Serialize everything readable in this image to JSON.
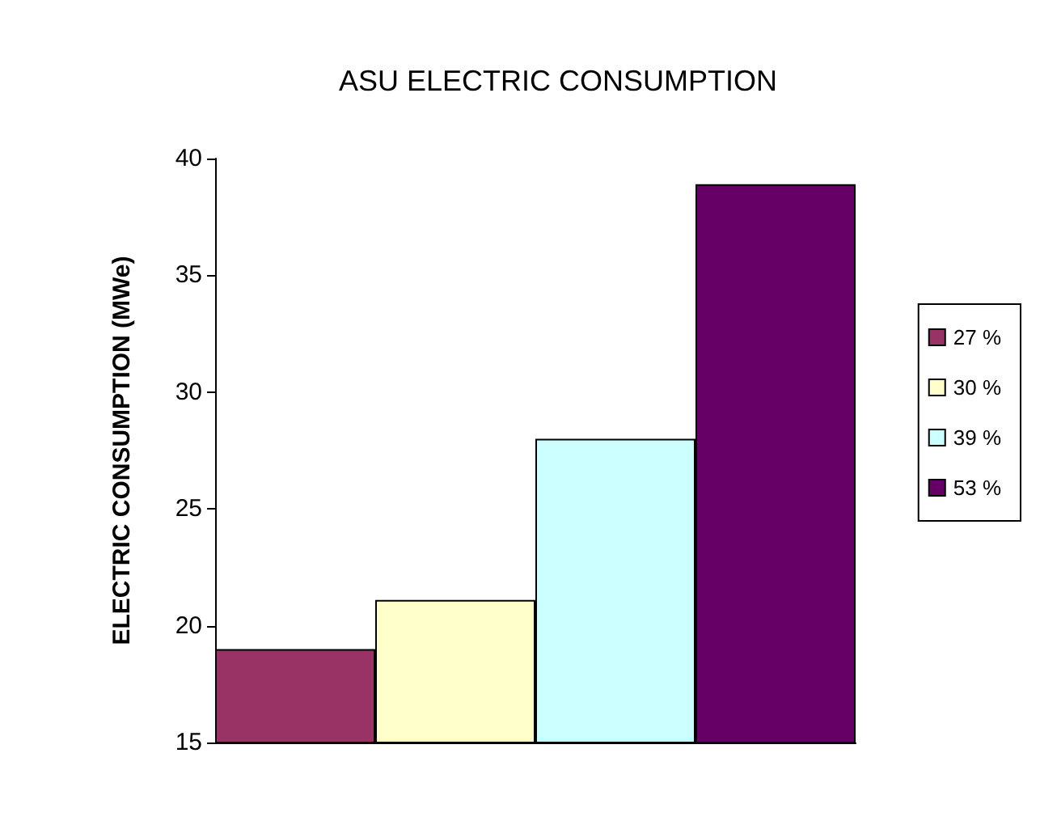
{
  "chart_data": {
    "type": "bar",
    "title": "ASU ELECTRIC CONSUMPTION",
    "ylabel": "ELECTRIC CONSUMPTION (MWe)",
    "categories": [
      null
    ],
    "series": [
      {
        "name": "27 %",
        "color": "#993366",
        "values": [
          19.0
        ]
      },
      {
        "name": "30 %",
        "color": "#ffffcc",
        "values": [
          21.1
        ]
      },
      {
        "name": "39 %",
        "color": "#ccffff",
        "values": [
          28.0
        ]
      },
      {
        "name": "53 %",
        "color": "#660066",
        "values": [
          38.9
        ]
      }
    ],
    "ylim": [
      15,
      40
    ],
    "yticks": [
      15,
      20,
      25,
      30,
      35,
      40
    ],
    "grid": false,
    "legend": "right"
  }
}
